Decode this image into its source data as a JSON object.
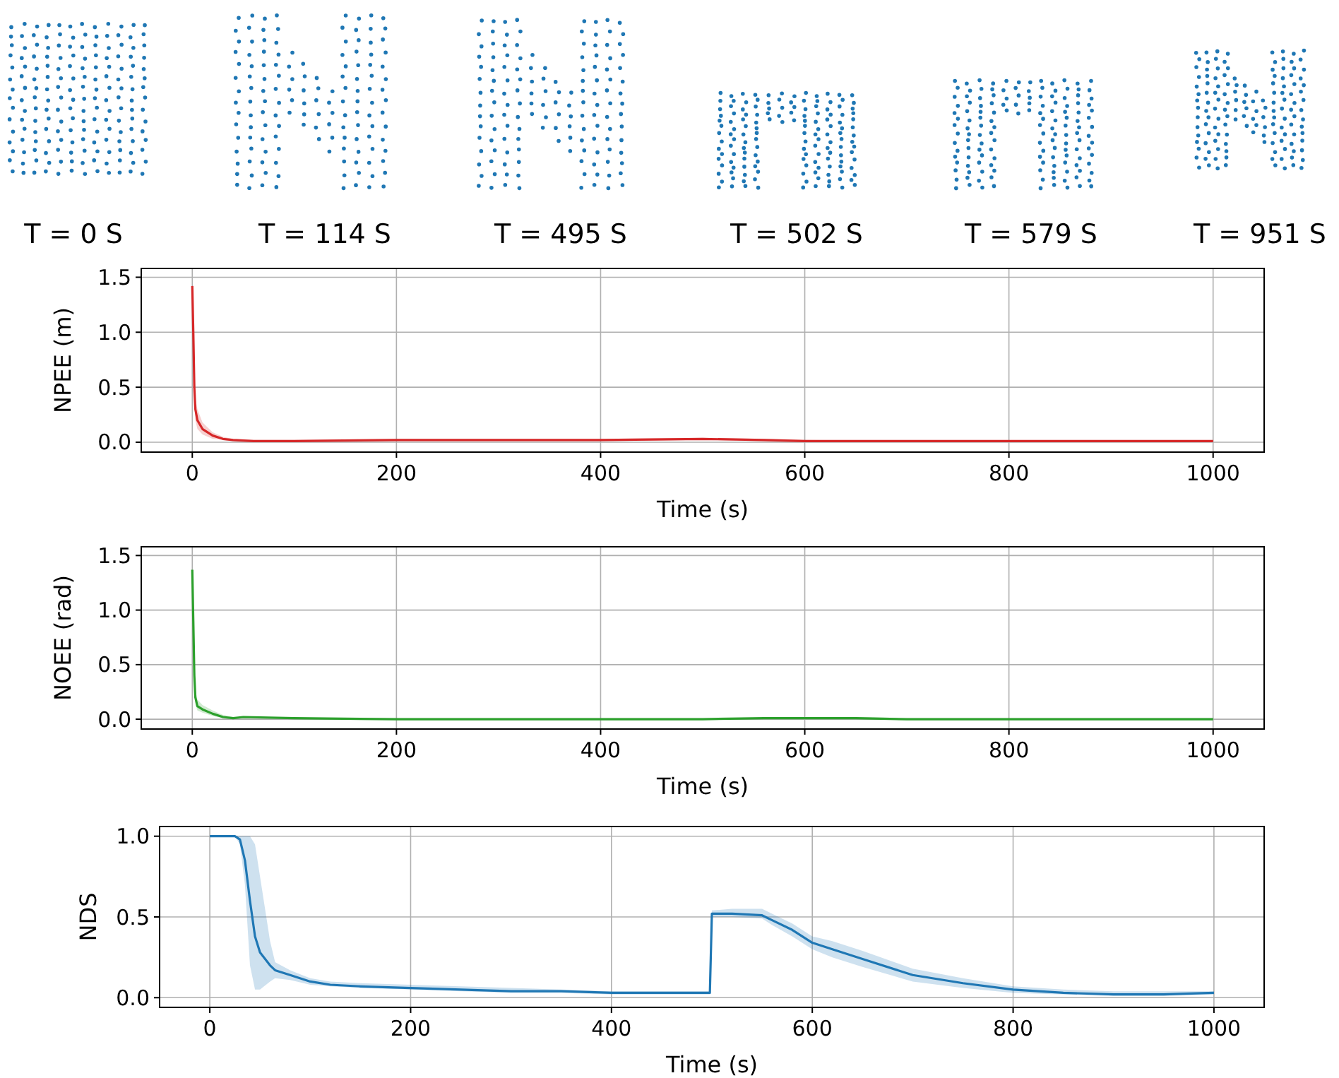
{
  "chart_data": [
    {
      "type": "other",
      "annotations": [
        "T = 0 S",
        "T = 114 S",
        "T = 495 S",
        "T = 502 S",
        "T = 579 S",
        "T = 951 S"
      ]
    },
    {
      "type": "line",
      "xlabel": "Time (s)",
      "ylabel": "NPEE (m)",
      "xlim": [
        -50,
        1050
      ],
      "ylim": [
        -0.09,
        1.58
      ],
      "xticks": [
        0,
        200,
        400,
        600,
        800,
        1000
      ],
      "yticks": [
        {
          "value": 0,
          "label": "0.0"
        },
        {
          "value": 0.5,
          "label": "0.5"
        },
        {
          "value": 1,
          "label": "1.0"
        },
        {
          "value": 1.5,
          "label": "1.5"
        }
      ],
      "grid": true,
      "series": [
        {
          "color": "#d62728",
          "x": [
            0,
            1,
            2,
            3,
            5,
            10,
            20,
            30,
            40,
            60,
            100,
            200,
            300,
            400,
            500,
            560,
            600,
            700,
            800,
            1000
          ],
          "values": [
            1.42,
            1.0,
            0.5,
            0.3,
            0.2,
            0.12,
            0.06,
            0.03,
            0.02,
            0.01,
            0.01,
            0.02,
            0.02,
            0.02,
            0.03,
            0.02,
            0.01,
            0.01,
            0.01,
            0.01
          ],
          "lower": [
            1.42,
            0.9,
            0.4,
            0.2,
            0.12,
            0.07,
            0.03,
            0.02,
            0.01,
            0.0,
            0.0,
            0.01,
            0.01,
            0.01,
            0.02,
            0.01,
            0.0,
            0.0,
            0.0,
            0.0
          ],
          "upper": [
            1.42,
            1.1,
            0.6,
            0.4,
            0.3,
            0.18,
            0.09,
            0.05,
            0.03,
            0.02,
            0.02,
            0.03,
            0.03,
            0.03,
            0.04,
            0.03,
            0.02,
            0.01,
            0.01,
            0.01
          ]
        }
      ]
    },
    {
      "type": "line",
      "xlabel": "Time (s)",
      "ylabel": "NOEE (rad)",
      "xlim": [
        -50,
        1050
      ],
      "ylim": [
        -0.09,
        1.58
      ],
      "xticks": [
        0,
        200,
        400,
        600,
        800,
        1000
      ],
      "yticks": [
        {
          "value": 0,
          "label": "0.0"
        },
        {
          "value": 0.5,
          "label": "0.5"
        },
        {
          "value": 1,
          "label": "1.0"
        },
        {
          "value": 1.5,
          "label": "1.5"
        }
      ],
      "grid": true,
      "series": [
        {
          "color": "#2ca02c",
          "x": [
            0,
            1,
            2,
            3,
            5,
            10,
            20,
            30,
            40,
            50,
            100,
            200,
            300,
            400,
            500,
            560,
            600,
            650,
            700,
            800,
            1000
          ],
          "values": [
            1.37,
            0.9,
            0.4,
            0.2,
            0.12,
            0.09,
            0.05,
            0.02,
            0.01,
            0.02,
            0.01,
            0.0,
            0.0,
            0.0,
            0.0,
            0.01,
            0.01,
            0.01,
            0.0,
            0.0,
            0.0
          ],
          "lower": [
            1.37,
            0.8,
            0.3,
            0.14,
            0.08,
            0.06,
            0.03,
            0.01,
            0.0,
            0.01,
            0.0,
            0.0,
            0.0,
            0.0,
            0.0,
            0.0,
            0.0,
            0.0,
            0.0,
            0.0,
            0.0
          ],
          "upper": [
            1.37,
            1.0,
            0.5,
            0.26,
            0.18,
            0.13,
            0.08,
            0.04,
            0.02,
            0.02,
            0.01,
            0.01,
            0.01,
            0.01,
            0.01,
            0.01,
            0.02,
            0.02,
            0.01,
            0.01,
            0.01
          ]
        }
      ]
    },
    {
      "type": "line",
      "xlabel": "Time (s)",
      "ylabel": "NDS",
      "xlim": [
        -50,
        1050
      ],
      "ylim": [
        -0.06,
        1.06
      ],
      "xticks": [
        0,
        200,
        400,
        600,
        800,
        1000
      ],
      "yticks": [
        {
          "value": 0,
          "label": "0.0"
        },
        {
          "value": 0.5,
          "label": "0.5"
        },
        {
          "value": 1,
          "label": "1.0"
        }
      ],
      "grid": true,
      "series": [
        {
          "color": "#1f77b4",
          "x": [
            0,
            25,
            30,
            35,
            40,
            45,
            50,
            60,
            65,
            80,
            100,
            120,
            150,
            200,
            250,
            300,
            350,
            400,
            450,
            498,
            500,
            520,
            550,
            560,
            580,
            600,
            620,
            650,
            700,
            750,
            800,
            850,
            900,
            950,
            1000
          ],
          "values": [
            1,
            1,
            0.98,
            0.85,
            0.6,
            0.38,
            0.28,
            0.2,
            0.17,
            0.14,
            0.1,
            0.08,
            0.07,
            0.06,
            0.05,
            0.04,
            0.04,
            0.03,
            0.03,
            0.03,
            0.52,
            0.52,
            0.51,
            0.48,
            0.42,
            0.34,
            0.3,
            0.24,
            0.14,
            0.09,
            0.05,
            0.03,
            0.02,
            0.02,
            0.03
          ],
          "lower": [
            1,
            1,
            0.95,
            0.7,
            0.2,
            0.05,
            0.05,
            0.1,
            0.12,
            0.11,
            0.08,
            0.07,
            0.06,
            0.05,
            0.04,
            0.03,
            0.03,
            0.02,
            0.02,
            0.02,
            0.5,
            0.5,
            0.49,
            0.45,
            0.38,
            0.3,
            0.25,
            0.19,
            0.1,
            0.06,
            0.03,
            0.02,
            0.01,
            0.01,
            0.02
          ],
          "upper": [
            1,
            1,
            1,
            1,
            1,
            0.95,
            0.75,
            0.35,
            0.22,
            0.17,
            0.12,
            0.1,
            0.09,
            0.08,
            0.07,
            0.06,
            0.05,
            0.04,
            0.04,
            0.04,
            0.54,
            0.55,
            0.55,
            0.52,
            0.46,
            0.38,
            0.35,
            0.29,
            0.18,
            0.12,
            0.07,
            0.05,
            0.04,
            0.04,
            0.04
          ]
        }
      ]
    }
  ]
}
